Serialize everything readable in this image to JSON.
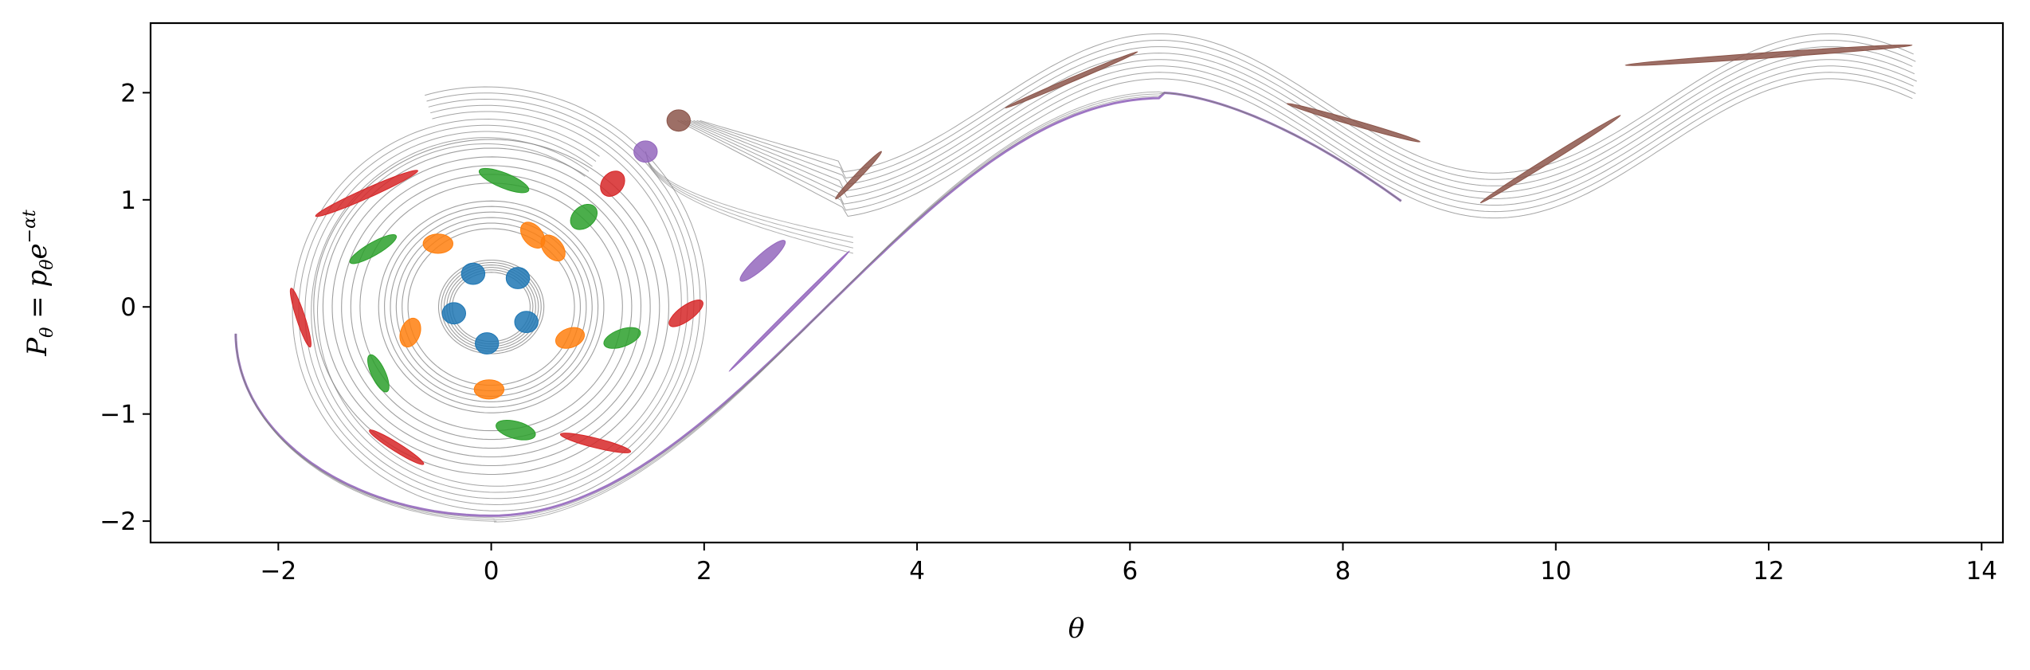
{
  "chart_data": {
    "type": "line",
    "title": "",
    "xlabel": "θ",
    "ylabel": "P_θ = p_θ e^{−αt}",
    "xlim": [
      -3.2,
      14.2
    ],
    "ylim": [
      -2.2,
      2.65
    ],
    "x_ticks": [
      -2,
      0,
      2,
      4,
      6,
      8,
      10,
      12,
      14
    ],
    "x_tick_labels": [
      "−2",
      "0",
      "2",
      "4",
      "6",
      "8",
      "10",
      "12",
      "14"
    ],
    "y_ticks": [
      -2,
      -1,
      0,
      1,
      2
    ],
    "y_tick_labels": [
      "−2",
      "−1",
      "0",
      "1",
      "2"
    ],
    "grid": false,
    "legend": "none",
    "colors": {
      "trajectory": "#7f7f7f",
      "blue": "#1f77b4",
      "orange": "#ff7f0e",
      "green": "#2ca02c",
      "red": "#d62728",
      "purple": "#9467bd",
      "brown": "#8c564b"
    },
    "series": [
      {
        "color": "blue",
        "patches": [
          {
            "x": -0.17,
            "y": 0.31,
            "w": 0.22,
            "h": 0.2,
            "angle": 0
          },
          {
            "x": 0.25,
            "y": 0.27,
            "w": 0.22,
            "h": 0.2,
            "angle": 0
          },
          {
            "x": -0.35,
            "y": -0.06,
            "w": 0.22,
            "h": 0.2,
            "angle": 0
          },
          {
            "x": 0.33,
            "y": -0.14,
            "w": 0.22,
            "h": 0.2,
            "angle": 0
          },
          {
            "x": -0.04,
            "y": -0.34,
            "w": 0.22,
            "h": 0.2,
            "angle": 0
          }
        ]
      },
      {
        "color": "orange",
        "patches": [
          {
            "x": -0.5,
            "y": 0.59,
            "w": 0.28,
            "h": 0.18,
            "angle": 0
          },
          {
            "x": 0.39,
            "y": 0.67,
            "w": 0.28,
            "h": 0.18,
            "angle": -50
          },
          {
            "x": 0.58,
            "y": 0.55,
            "w": 0.28,
            "h": 0.18,
            "angle": -50
          },
          {
            "x": -0.76,
            "y": -0.24,
            "w": 0.28,
            "h": 0.18,
            "angle": 70
          },
          {
            "x": 0.74,
            "y": -0.29,
            "w": 0.28,
            "h": 0.18,
            "angle": 20
          },
          {
            "x": -0.02,
            "y": -0.77,
            "w": 0.28,
            "h": 0.18,
            "angle": 0
          }
        ]
      },
      {
        "color": "green",
        "patches": [
          {
            "x": 0.12,
            "y": 1.18,
            "w": 0.5,
            "h": 0.14,
            "angle": -22
          },
          {
            "x": 0.87,
            "y": 0.84,
            "w": 0.28,
            "h": 0.2,
            "angle": 40
          },
          {
            "x": -1.11,
            "y": 0.54,
            "w": 0.5,
            "h": 0.12,
            "angle": 30
          },
          {
            "x": 1.23,
            "y": -0.29,
            "w": 0.36,
            "h": 0.16,
            "angle": 20
          },
          {
            "x": -1.06,
            "y": -0.62,
            "w": 0.38,
            "h": 0.13,
            "angle": -65
          },
          {
            "x": 0.23,
            "y": -1.15,
            "w": 0.38,
            "h": 0.16,
            "angle": -15
          }
        ]
      },
      {
        "color": "red",
        "patches": [
          {
            "x": -1.17,
            "y": 1.06,
            "w": 1.05,
            "h": 0.09,
            "angle": 24
          },
          {
            "x": 1.14,
            "y": 1.15,
            "w": 0.26,
            "h": 0.2,
            "angle": 50
          },
          {
            "x": -1.79,
            "y": -0.1,
            "w": 0.58,
            "h": 0.08,
            "angle": -72
          },
          {
            "x": 1.83,
            "y": -0.06,
            "w": 0.38,
            "h": 0.14,
            "angle": 36
          },
          {
            "x": -0.89,
            "y": -1.31,
            "w": 0.6,
            "h": 0.08,
            "angle": -32
          },
          {
            "x": 0.98,
            "y": -1.27,
            "w": 0.68,
            "h": 0.09,
            "angle": -14
          }
        ]
      },
      {
        "color": "purple",
        "patches": [
          {
            "x": 1.45,
            "y": 1.45,
            "w": 0.22,
            "h": 0.2,
            "angle": 0
          },
          {
            "x": 2.55,
            "y": 0.43,
            "w": 0.56,
            "h": 0.12,
            "angle": 42
          },
          {
            "x": 2.8,
            "y": -0.04,
            "w": 1.6,
            "h": 0.03,
            "angle": 45
          }
        ]
      },
      {
        "color": "brown",
        "patches": [
          {
            "x": 1.76,
            "y": 1.74,
            "w": 0.22,
            "h": 0.2,
            "angle": 0
          },
          {
            "x": 3.45,
            "y": 1.23,
            "w": 0.62,
            "h": 0.05,
            "angle": 46
          },
          {
            "x": 5.45,
            "y": 2.12,
            "w": 1.35,
            "h": 0.04,
            "angle": 23
          },
          {
            "x": 8.1,
            "y": 1.72,
            "w": 1.3,
            "h": 0.05,
            "angle": -16
          },
          {
            "x": 9.95,
            "y": 1.38,
            "w": 1.55,
            "h": 0.05,
            "angle": 32
          },
          {
            "x": 12.0,
            "y": 2.35,
            "w": 2.7,
            "h": 0.05,
            "angle": 4
          }
        ]
      }
    ]
  }
}
